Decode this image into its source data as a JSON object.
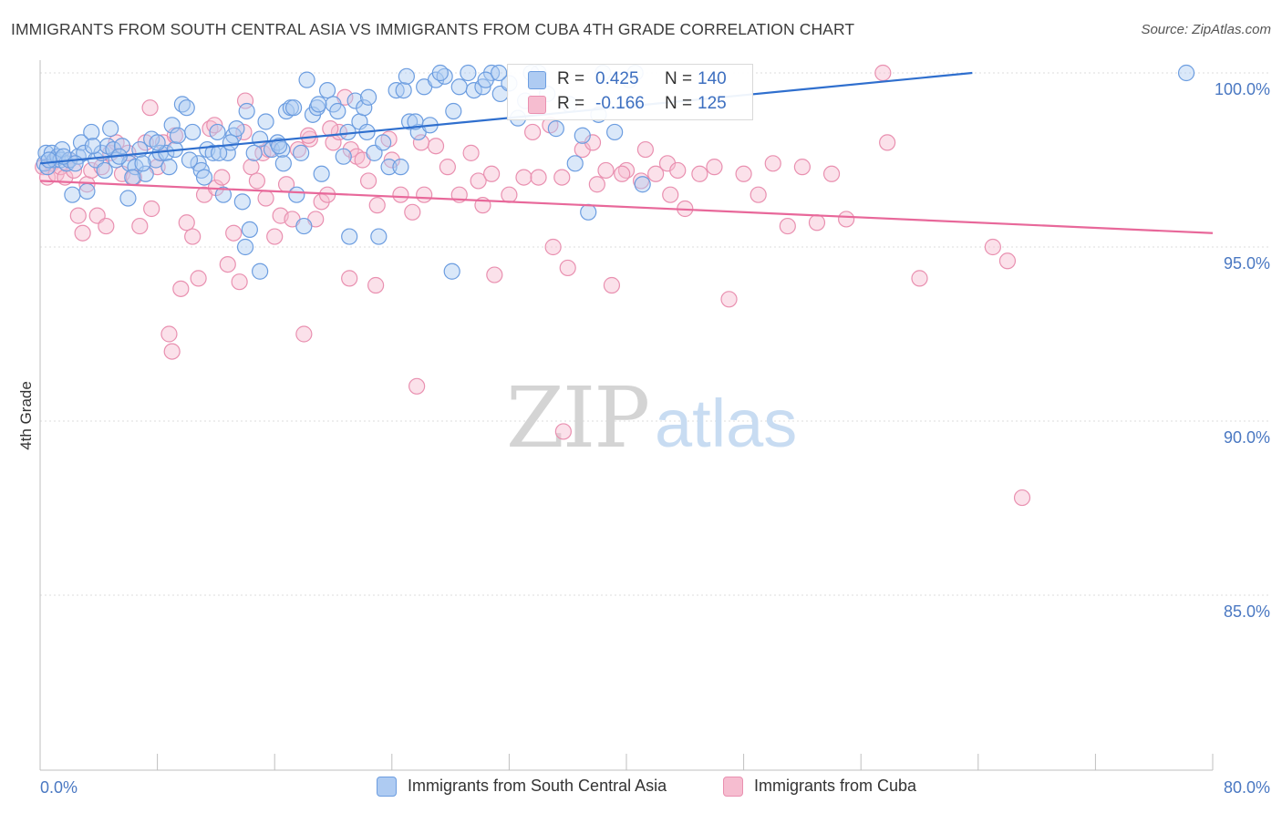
{
  "title": "IMMIGRANTS FROM SOUTH CENTRAL ASIA VS IMMIGRANTS FROM CUBA 4TH GRADE CORRELATION CHART",
  "source": "Source: ZipAtlas.com",
  "watermark": {
    "zip": "ZIP",
    "atlas": "atlas"
  },
  "legend_top": {
    "rows": [
      {
        "r_label": "R =",
        "r_value": "0.425",
        "n_label": "N =",
        "n_value": "140"
      },
      {
        "r_label": "R =",
        "r_value": "-0.166",
        "n_label": "N =",
        "n_value": "125"
      }
    ]
  },
  "legend_bottom": [
    {
      "label": "Immigrants from South Central Asia"
    },
    {
      "label": "Immigrants from Cuba"
    }
  ],
  "colors": {
    "blue_fill": "#aecbf2",
    "blue_stroke": "#6c9de0",
    "blue_line": "#2f6fce",
    "pink_fill": "#f6bdd0",
    "pink_stroke": "#e990b0",
    "pink_line": "#e8689a",
    "tick_text": "#4a78c2",
    "grid": "#dddddd"
  },
  "chart_data": {
    "type": "scatter",
    "title": "IMMIGRANTS FROM SOUTH CENTRAL ASIA VS IMMIGRANTS FROM CUBA 4TH GRADE CORRELATION CHART",
    "xlabel": "",
    "ylabel": "4th Grade",
    "xlim": [
      0,
      80
    ],
    "ylim": [
      80.5,
      100.9
    ],
    "x_tick_labels": [
      {
        "value": 0,
        "label": "0.0%"
      },
      {
        "value": 80,
        "label": "80.0%"
      }
    ],
    "y_tick_labels": [
      {
        "value": 100,
        "label": "100.0%"
      },
      {
        "value": 95,
        "label": "95.0%"
      },
      {
        "value": 90,
        "label": "90.0%"
      },
      {
        "value": 85,
        "label": "85.0%"
      }
    ],
    "grid": true,
    "legend_position": "top-center and bottom",
    "series": [
      {
        "name": "Immigrants from South Central Asia",
        "color": "#6c9de0",
        "trend": {
          "x": [
            0,
            63.6
          ],
          "y": [
            97.4,
            100.0
          ]
        },
        "points": [
          [
            0.3,
            97.4
          ],
          [
            0.4,
            97.7
          ],
          [
            0.5,
            97.3
          ],
          [
            0.8,
            97.7
          ],
          [
            1.0,
            97.5
          ],
          [
            1.2,
            97.6
          ],
          [
            1.4,
            97.5
          ],
          [
            1.5,
            97.8
          ],
          [
            1.8,
            97.4
          ],
          [
            2.0,
            97.5
          ],
          [
            2.2,
            96.5
          ],
          [
            2.6,
            97.6
          ],
          [
            2.8,
            98.0
          ],
          [
            3.0,
            97.7
          ],
          [
            3.2,
            96.6
          ],
          [
            3.5,
            98.3
          ],
          [
            3.8,
            97.5
          ],
          [
            4.2,
            97.7
          ],
          [
            4.6,
            97.9
          ],
          [
            4.8,
            98.4
          ],
          [
            5.0,
            97.8
          ],
          [
            5.2,
            97.5
          ],
          [
            5.6,
            97.9
          ],
          [
            6.0,
            96.4
          ],
          [
            6.1,
            97.4
          ],
          [
            6.5,
            97.3
          ],
          [
            6.8,
            97.8
          ],
          [
            7.2,
            97.1
          ],
          [
            7.6,
            98.1
          ],
          [
            7.9,
            97.5
          ],
          [
            8.2,
            97.7
          ],
          [
            8.6,
            97.7
          ],
          [
            9.0,
            98.5
          ],
          [
            9.2,
            97.8
          ],
          [
            9.4,
            98.2
          ],
          [
            9.7,
            99.1
          ],
          [
            10.0,
            99.0
          ],
          [
            10.4,
            98.3
          ],
          [
            10.8,
            97.4
          ],
          [
            11.0,
            97.2
          ],
          [
            11.4,
            97.8
          ],
          [
            11.8,
            97.7
          ],
          [
            12.1,
            98.3
          ],
          [
            12.5,
            96.5
          ],
          [
            12.8,
            97.7
          ],
          [
            13.2,
            98.2
          ],
          [
            13.4,
            98.4
          ],
          [
            13.8,
            96.3
          ],
          [
            14.1,
            98.9
          ],
          [
            14.6,
            97.7
          ],
          [
            15.0,
            98.1
          ],
          [
            15.4,
            98.6
          ],
          [
            15.8,
            97.8
          ],
          [
            16.2,
            98.0
          ],
          [
            16.5,
            97.8
          ],
          [
            16.8,
            98.9
          ],
          [
            17.1,
            99.0
          ],
          [
            17.5,
            96.5
          ],
          [
            17.8,
            97.7
          ],
          [
            18.2,
            99.8
          ],
          [
            18.6,
            98.8
          ],
          [
            18.9,
            99.0
          ],
          [
            19.2,
            97.1
          ],
          [
            19.6,
            99.5
          ],
          [
            20.0,
            99.1
          ],
          [
            20.3,
            98.9
          ],
          [
            20.7,
            97.6
          ],
          [
            21.0,
            98.3
          ],
          [
            21.5,
            99.2
          ],
          [
            21.8,
            98.6
          ],
          [
            22.1,
            99.0
          ],
          [
            22.4,
            99.3
          ],
          [
            22.8,
            97.7
          ],
          [
            23.4,
            98.0
          ],
          [
            23.8,
            97.3
          ],
          [
            24.3,
            99.5
          ],
          [
            24.8,
            99.5
          ],
          [
            25.2,
            98.6
          ],
          [
            25.8,
            98.3
          ],
          [
            26.2,
            99.6
          ],
          [
            27.0,
            99.8
          ],
          [
            27.6,
            99.9
          ],
          [
            28.2,
            98.9
          ],
          [
            28.6,
            99.6
          ],
          [
            29.2,
            100.0
          ],
          [
            29.6,
            99.5
          ],
          [
            30.2,
            99.6
          ],
          [
            30.8,
            100.0
          ],
          [
            31.4,
            99.4
          ],
          [
            32.0,
            99.7
          ],
          [
            32.6,
            98.7
          ],
          [
            33.1,
            99.2
          ],
          [
            34.0,
            100.0
          ],
          [
            34.6,
            99.4
          ],
          [
            35.2,
            98.4
          ],
          [
            36.1,
            99.1
          ],
          [
            37.0,
            98.2
          ],
          [
            38.1,
            98.8
          ],
          [
            39.2,
            98.3
          ],
          [
            40.2,
            99.8
          ],
          [
            41.1,
            96.8
          ],
          [
            0.6,
            97.5
          ],
          [
            1.6,
            97.6
          ],
          [
            2.4,
            97.4
          ],
          [
            3.6,
            97.9
          ],
          [
            4.4,
            97.2
          ],
          [
            5.4,
            97.6
          ],
          [
            6.3,
            97.0
          ],
          [
            7.0,
            97.4
          ],
          [
            8.0,
            98.0
          ],
          [
            8.8,
            97.3
          ],
          [
            10.2,
            97.5
          ],
          [
            11.2,
            97.0
          ],
          [
            12.2,
            97.7
          ],
          [
            13.0,
            98.0
          ],
          [
            14.3,
            95.5
          ],
          [
            15.0,
            94.3
          ],
          [
            16.3,
            97.9
          ],
          [
            16.6,
            97.4
          ],
          [
            17.3,
            99.0
          ],
          [
            18.0,
            95.6
          ],
          [
            19.0,
            99.1
          ],
          [
            21.1,
            95.3
          ],
          [
            22.3,
            98.3
          ],
          [
            23.1,
            95.3
          ],
          [
            24.6,
            97.3
          ],
          [
            25.0,
            99.9
          ],
          [
            25.6,
            98.6
          ],
          [
            27.3,
            100.0
          ],
          [
            28.1,
            94.3
          ],
          [
            30.4,
            99.8
          ],
          [
            31.3,
            100.0
          ],
          [
            33.5,
            100.0
          ],
          [
            36.5,
            97.4
          ],
          [
            37.4,
            96.0
          ],
          [
            38.4,
            100.0
          ],
          [
            40.6,
            100.0
          ],
          [
            78.2,
            100.0
          ],
          [
            14.0,
            95.0
          ],
          [
            26.6,
            98.5
          ]
        ]
      },
      {
        "name": "Immigrants from Cuba",
        "color": "#e990b0",
        "trend": {
          "x": [
            0,
            80
          ],
          "y": [
            96.9,
            95.4
          ]
        },
        "points": [
          [
            0.2,
            97.3
          ],
          [
            0.5,
            97.0
          ],
          [
            0.8,
            97.4
          ],
          [
            1.1,
            97.1
          ],
          [
            1.4,
            97.3
          ],
          [
            1.7,
            97.0
          ],
          [
            2.0,
            97.5
          ],
          [
            2.3,
            97.2
          ],
          [
            2.6,
            95.9
          ],
          [
            2.9,
            95.4
          ],
          [
            3.2,
            96.8
          ],
          [
            3.5,
            97.2
          ],
          [
            3.9,
            95.9
          ],
          [
            4.2,
            97.3
          ],
          [
            4.5,
            95.6
          ],
          [
            4.8,
            97.7
          ],
          [
            5.2,
            98.0
          ],
          [
            5.6,
            97.1
          ],
          [
            6.0,
            97.7
          ],
          [
            6.4,
            97.0
          ],
          [
            6.8,
            95.6
          ],
          [
            7.2,
            98.0
          ],
          [
            7.6,
            96.1
          ],
          [
            8.0,
            97.3
          ],
          [
            8.4,
            98.0
          ],
          [
            8.8,
            92.5
          ],
          [
            9.2,
            98.2
          ],
          [
            9.6,
            93.8
          ],
          [
            10.0,
            95.7
          ],
          [
            10.4,
            95.3
          ],
          [
            10.8,
            94.1
          ],
          [
            11.2,
            96.5
          ],
          [
            11.6,
            98.4
          ],
          [
            12.0,
            96.7
          ],
          [
            12.4,
            97.0
          ],
          [
            12.8,
            94.5
          ],
          [
            13.2,
            95.4
          ],
          [
            13.6,
            94.0
          ],
          [
            14.0,
            99.2
          ],
          [
            14.4,
            97.3
          ],
          [
            14.8,
            96.9
          ],
          [
            15.2,
            97.7
          ],
          [
            15.6,
            97.8
          ],
          [
            16.0,
            95.3
          ],
          [
            16.4,
            95.9
          ],
          [
            16.8,
            96.8
          ],
          [
            17.2,
            95.8
          ],
          [
            17.6,
            97.8
          ],
          [
            18.0,
            92.5
          ],
          [
            18.4,
            98.1
          ],
          [
            18.8,
            95.8
          ],
          [
            19.2,
            96.3
          ],
          [
            19.6,
            96.5
          ],
          [
            20.0,
            98.0
          ],
          [
            20.4,
            98.3
          ],
          [
            20.8,
            99.3
          ],
          [
            21.2,
            97.8
          ],
          [
            21.6,
            97.6
          ],
          [
            22.0,
            97.5
          ],
          [
            22.4,
            96.9
          ],
          [
            23.0,
            96.2
          ],
          [
            23.8,
            98.1
          ],
          [
            24.6,
            96.5
          ],
          [
            25.4,
            96.0
          ],
          [
            26.2,
            96.5
          ],
          [
            27.0,
            97.9
          ],
          [
            27.8,
            97.3
          ],
          [
            28.6,
            96.5
          ],
          [
            29.4,
            97.7
          ],
          [
            30.2,
            96.2
          ],
          [
            31.0,
            94.2
          ],
          [
            32.0,
            96.5
          ],
          [
            33.0,
            97.0
          ],
          [
            34.0,
            97.0
          ],
          [
            35.0,
            95.0
          ],
          [
            36.0,
            94.4
          ],
          [
            37.0,
            97.8
          ],
          [
            38.0,
            96.8
          ],
          [
            39.0,
            93.9
          ],
          [
            40.0,
            97.2
          ],
          [
            41.0,
            96.9
          ],
          [
            42.0,
            97.1
          ],
          [
            43.0,
            96.5
          ],
          [
            44.0,
            96.1
          ],
          [
            45.0,
            97.1
          ],
          [
            46.0,
            97.3
          ],
          [
            47.0,
            93.5
          ],
          [
            48.0,
            97.1
          ],
          [
            49.0,
            96.5
          ],
          [
            50.0,
            97.4
          ],
          [
            51.0,
            95.6
          ],
          [
            52.0,
            97.3
          ],
          [
            53.0,
            95.7
          ],
          [
            54.0,
            97.1
          ],
          [
            55.0,
            95.8
          ],
          [
            57.5,
            100.0
          ],
          [
            57.8,
            98.0
          ],
          [
            60.0,
            94.1
          ],
          [
            65.0,
            95.0
          ],
          [
            66.0,
            94.6
          ],
          [
            67.0,
            87.8
          ],
          [
            9.0,
            92.0
          ],
          [
            25.7,
            91.0
          ],
          [
            35.7,
            89.7
          ],
          [
            7.5,
            99.0
          ],
          [
            11.9,
            98.5
          ],
          [
            13.9,
            98.3
          ],
          [
            15.4,
            96.4
          ],
          [
            18.3,
            98.2
          ],
          [
            19.8,
            98.4
          ],
          [
            21.1,
            94.1
          ],
          [
            22.9,
            93.9
          ],
          [
            24.0,
            97.5
          ],
          [
            26.0,
            98.0
          ],
          [
            29.9,
            96.9
          ],
          [
            30.8,
            97.1
          ],
          [
            33.6,
            98.3
          ],
          [
            34.8,
            98.5
          ],
          [
            35.6,
            97.0
          ],
          [
            37.7,
            98.0
          ],
          [
            38.6,
            97.2
          ],
          [
            39.7,
            97.1
          ],
          [
            41.3,
            97.8
          ],
          [
            42.8,
            97.4
          ],
          [
            43.5,
            97.2
          ]
        ]
      }
    ]
  }
}
